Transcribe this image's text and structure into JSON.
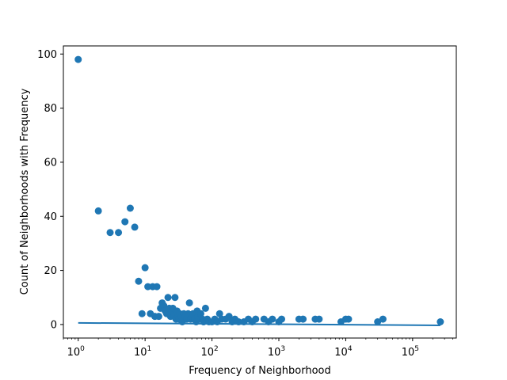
{
  "chart_data": {
    "type": "scatter",
    "title": "",
    "xlabel": "Frequency of Neighborhood",
    "ylabel": "Count of Neighborhoods with Frequency",
    "xscale": "log",
    "xlim": [
      0.6,
      450000
    ],
    "ylim": [
      -5,
      103
    ],
    "grid": false,
    "legend": "none",
    "colors": {
      "points": "#1f77b4",
      "fit_line": "#1f77b4"
    },
    "x_tick_labels": [
      {
        "value": 1,
        "base": "10",
        "exp": "0"
      },
      {
        "value": 10,
        "base": "10",
        "exp": "1"
      },
      {
        "value": 100,
        "base": "10",
        "exp": "2"
      },
      {
        "value": 1000,
        "base": "10",
        "exp": "3"
      },
      {
        "value": 10000,
        "base": "10",
        "exp": "4"
      },
      {
        "value": 100000,
        "base": "10",
        "exp": "5"
      }
    ],
    "y_ticks": [
      0,
      20,
      40,
      60,
      80,
      100
    ],
    "y_tick_labels": [
      "0",
      "20",
      "40",
      "60",
      "80",
      "100"
    ],
    "points": [
      [
        1,
        98
      ],
      [
        2,
        42
      ],
      [
        3,
        34
      ],
      [
        4,
        34
      ],
      [
        5,
        38
      ],
      [
        6,
        43
      ],
      [
        7,
        36
      ],
      [
        8,
        16
      ],
      [
        9,
        4
      ],
      [
        10,
        21
      ],
      [
        11,
        14
      ],
      [
        12,
        4
      ],
      [
        13,
        14
      ],
      [
        14,
        3
      ],
      [
        15,
        14
      ],
      [
        16,
        3
      ],
      [
        17,
        6
      ],
      [
        18,
        8
      ],
      [
        19,
        7
      ],
      [
        20,
        5
      ],
      [
        21,
        4
      ],
      [
        22,
        10
      ],
      [
        23,
        6
      ],
      [
        24,
        3
      ],
      [
        25,
        5
      ],
      [
        26,
        6
      ],
      [
        27,
        3
      ],
      [
        28,
        10
      ],
      [
        29,
        2
      ],
      [
        30,
        5
      ],
      [
        31,
        3
      ],
      [
        32,
        2
      ],
      [
        33,
        4
      ],
      [
        35,
        3
      ],
      [
        36,
        1
      ],
      [
        38,
        4
      ],
      [
        40,
        3
      ],
      [
        42,
        2
      ],
      [
        44,
        4
      ],
      [
        46,
        8
      ],
      [
        48,
        2
      ],
      [
        50,
        3
      ],
      [
        52,
        4
      ],
      [
        55,
        2
      ],
      [
        58,
        1
      ],
      [
        60,
        5
      ],
      [
        62,
        3
      ],
      [
        65,
        2
      ],
      [
        68,
        4
      ],
      [
        72,
        2
      ],
      [
        75,
        1
      ],
      [
        80,
        6
      ],
      [
        85,
        2
      ],
      [
        90,
        1
      ],
      [
        100,
        1
      ],
      [
        110,
        2
      ],
      [
        120,
        1
      ],
      [
        130,
        4
      ],
      [
        140,
        2
      ],
      [
        160,
        2
      ],
      [
        180,
        3
      ],
      [
        200,
        1
      ],
      [
        220,
        2
      ],
      [
        250,
        1
      ],
      [
        300,
        1
      ],
      [
        350,
        2
      ],
      [
        400,
        1
      ],
      [
        450,
        2
      ],
      [
        600,
        2
      ],
      [
        700,
        1
      ],
      [
        800,
        2
      ],
      [
        1000,
        1
      ],
      [
        1100,
        2
      ],
      [
        2000,
        2
      ],
      [
        2300,
        2
      ],
      [
        3500,
        2
      ],
      [
        4000,
        2
      ],
      [
        8500,
        1
      ],
      [
        10000,
        2
      ],
      [
        11000,
        2
      ],
      [
        30000,
        1
      ],
      [
        36000,
        2
      ],
      [
        260000,
        1
      ]
    ],
    "fit_line": {
      "x": [
        1,
        260000
      ],
      "y": [
        0.6,
        -0.3
      ]
    }
  }
}
